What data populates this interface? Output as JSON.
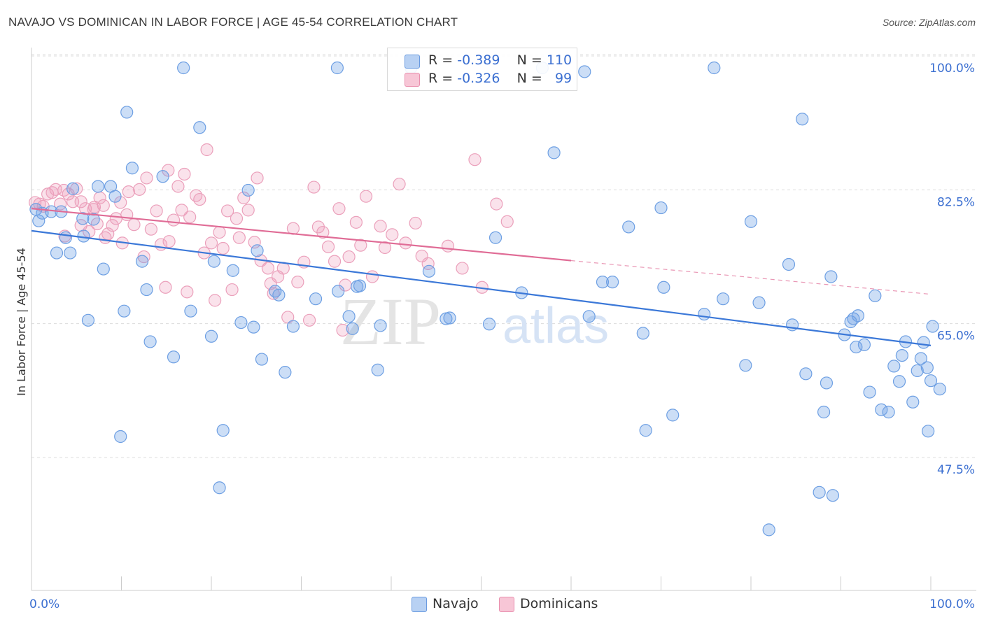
{
  "title": "NAVAJO VS DOMINICAN IN LABOR FORCE | AGE 45-54 CORRELATION CHART",
  "source": "Source: ZipAtlas.com",
  "watermark": {
    "zip": "ZIP",
    "atlas": "atlas"
  },
  "legend": {
    "items": [
      {
        "name": "Navajo",
        "r_label": "R =",
        "r_value": "-0.389",
        "n_label": "N =",
        "n_value": "110",
        "color": "#6a9be0",
        "fill": "#b8d1f3"
      },
      {
        "name": "Dominicans",
        "r_label": "R =",
        "r_value": "-0.326",
        "n_label": "N =",
        "n_value": "99",
        "color": "#e98fae",
        "fill": "#f7c6d6"
      }
    ]
  },
  "chart_data": {
    "type": "scatter",
    "title": "NAVAJO VS DOMINICAN IN LABOR FORCE | AGE 45-54 CORRELATION CHART",
    "xlabel": "",
    "ylabel": "In Labor Force | Age 45-54",
    "xlim": [
      0,
      100
    ],
    "ylim": [
      32,
      102
    ],
    "x_tick_labels": [
      "0.0%",
      "100.0%"
    ],
    "y_ticks": [
      47.5,
      65.0,
      82.5,
      100.0
    ],
    "y_tick_labels": [
      "47.5%",
      "65.0%",
      "82.5%",
      "100.0%"
    ],
    "grid": true,
    "series": [
      {
        "name": "Navajo",
        "color": "#3b78d8",
        "point_fill": "rgba(110,160,230,0.35)",
        "point_stroke": "#6d9fe3",
        "trend": {
          "x0": 0,
          "y0": 78.7,
          "x1": 100,
          "y1": 63.7
        },
        "points": [
          [
            0.5,
            81.5
          ],
          [
            0.8,
            80.0
          ],
          [
            1.2,
            81.0
          ],
          [
            2.2,
            81.2
          ],
          [
            2.8,
            75.8
          ],
          [
            3.3,
            81.2
          ],
          [
            3.8,
            77.8
          ],
          [
            4.3,
            75.8
          ],
          [
            4.6,
            84.2
          ],
          [
            5.7,
            80.3
          ],
          [
            5.8,
            78.0
          ],
          [
            6.3,
            67.0
          ],
          [
            6.9,
            80.2
          ],
          [
            7.4,
            84.5
          ],
          [
            8.0,
            73.7
          ],
          [
            8.8,
            84.5
          ],
          [
            9.3,
            83.2
          ],
          [
            9.9,
            51.8
          ],
          [
            10.3,
            68.2
          ],
          [
            10.6,
            94.2
          ],
          [
            11.2,
            86.9
          ],
          [
            12.3,
            74.7
          ],
          [
            12.8,
            71.0
          ],
          [
            13.2,
            64.2
          ],
          [
            14.6,
            85.8
          ],
          [
            15.8,
            62.2
          ],
          [
            16.9,
            100.0
          ],
          [
            17.7,
            68.2
          ],
          [
            18.7,
            92.2
          ],
          [
            20.0,
            64.9
          ],
          [
            20.3,
            74.7
          ],
          [
            20.9,
            45.1
          ],
          [
            21.3,
            52.6
          ],
          [
            22.4,
            73.5
          ],
          [
            23.3,
            66.7
          ],
          [
            24.1,
            84.0
          ],
          [
            24.7,
            66.1
          ],
          [
            25.1,
            76.1
          ],
          [
            25.6,
            61.9
          ],
          [
            27.1,
            70.8
          ],
          [
            27.5,
            70.3
          ],
          [
            28.2,
            60.2
          ],
          [
            29.1,
            66.2
          ],
          [
            31.6,
            69.8
          ],
          [
            34.0,
            100.0
          ],
          [
            34.1,
            70.8
          ],
          [
            35.3,
            67.5
          ],
          [
            35.7,
            65.9
          ],
          [
            36.2,
            71.4
          ],
          [
            36.5,
            71.5
          ],
          [
            38.5,
            60.5
          ],
          [
            38.8,
            66.3
          ],
          [
            42.2,
            100.0
          ],
          [
            44.2,
            73.4
          ],
          [
            46.1,
            67.2
          ],
          [
            46.5,
            67.3
          ],
          [
            50.9,
            66.5
          ],
          [
            51.6,
            77.8
          ],
          [
            54.5,
            70.6
          ],
          [
            56.8,
            100.0
          ],
          [
            58.1,
            88.9
          ],
          [
            61.5,
            99.5
          ],
          [
            62.0,
            67.5
          ],
          [
            63.5,
            72.0
          ],
          [
            64.6,
            72.0
          ],
          [
            66.4,
            79.2
          ],
          [
            68.0,
            65.3
          ],
          [
            68.3,
            52.6
          ],
          [
            70.0,
            81.7
          ],
          [
            70.3,
            71.3
          ],
          [
            71.3,
            54.6
          ],
          [
            74.8,
            67.8
          ],
          [
            75.9,
            100.0
          ],
          [
            76.9,
            69.8
          ],
          [
            79.4,
            61.1
          ],
          [
            80.0,
            79.9
          ],
          [
            80.9,
            69.3
          ],
          [
            82.0,
            39.6
          ],
          [
            84.2,
            74.3
          ],
          [
            84.6,
            66.4
          ],
          [
            85.7,
            93.3
          ],
          [
            86.1,
            60.0
          ],
          [
            87.6,
            44.5
          ],
          [
            88.1,
            55.0
          ],
          [
            88.4,
            58.8
          ],
          [
            88.9,
            72.7
          ],
          [
            90.4,
            65.1
          ],
          [
            91.1,
            66.8
          ],
          [
            91.4,
            67.2
          ],
          [
            91.9,
            67.6
          ],
          [
            92.6,
            63.8
          ],
          [
            93.2,
            57.6
          ],
          [
            93.8,
            70.2
          ],
          [
            94.5,
            55.3
          ],
          [
            95.3,
            55.0
          ],
          [
            96.5,
            59.0
          ],
          [
            96.8,
            62.4
          ],
          [
            97.2,
            64.2
          ],
          [
            98.0,
            56.3
          ],
          [
            98.5,
            60.4
          ],
          [
            99.2,
            64.1
          ],
          [
            99.6,
            60.8
          ],
          [
            100.0,
            59.1
          ],
          [
            99.7,
            52.5
          ],
          [
            100.2,
            66.2
          ],
          [
            89.1,
            44.1
          ],
          [
            101.0,
            58.0
          ],
          [
            91.7,
            63.5
          ],
          [
            95.9,
            61.0
          ],
          [
            98.9,
            62.0
          ]
        ]
      },
      {
        "name": "Dominicans",
        "color": "#e06c96",
        "point_fill": "rgba(240,160,190,0.30)",
        "point_stroke": "#eba0bb",
        "trend": {
          "x0": 0,
          "y0": 81.6,
          "x1": 60,
          "y1": 74.8
        },
        "trend_dashed": {
          "x0": 60,
          "y0": 74.8,
          "x1": 100,
          "y1": 70.4
        },
        "points": [
          [
            0.4,
            82.4
          ],
          [
            0.9,
            82.2
          ],
          [
            1.3,
            81.9
          ],
          [
            1.8,
            83.5
          ],
          [
            2.3,
            83.7
          ],
          [
            2.7,
            84.1
          ],
          [
            3.2,
            82.2
          ],
          [
            3.6,
            84.0
          ],
          [
            4.1,
            83.5
          ],
          [
            4.6,
            82.5
          ],
          [
            5.0,
            84.2
          ],
          [
            5.5,
            82.5
          ],
          [
            6.0,
            81.6
          ],
          [
            6.4,
            78.6
          ],
          [
            6.9,
            81.5
          ],
          [
            7.3,
            79.6
          ],
          [
            7.6,
            83.0
          ],
          [
            8.0,
            82.0
          ],
          [
            8.2,
            77.8
          ],
          [
            8.5,
            78.3
          ],
          [
            9.0,
            79.4
          ],
          [
            9.4,
            80.3
          ],
          [
            9.9,
            82.4
          ],
          [
            10.1,
            77.1
          ],
          [
            10.8,
            83.8
          ],
          [
            11.4,
            79.5
          ],
          [
            12.0,
            84.1
          ],
          [
            12.5,
            75.3
          ],
          [
            12.8,
            85.6
          ],
          [
            13.3,
            78.9
          ],
          [
            13.9,
            81.3
          ],
          [
            14.4,
            76.9
          ],
          [
            14.9,
            71.3
          ],
          [
            15.3,
            77.3
          ],
          [
            15.8,
            80.1
          ],
          [
            16.3,
            84.5
          ],
          [
            16.7,
            81.4
          ],
          [
            17.3,
            70.7
          ],
          [
            17.6,
            80.5
          ],
          [
            18.3,
            83.3
          ],
          [
            18.7,
            82.8
          ],
          [
            19.2,
            75.8
          ],
          [
            19.5,
            89.3
          ],
          [
            20.0,
            77.1
          ],
          [
            20.4,
            69.6
          ],
          [
            20.9,
            78.5
          ],
          [
            21.3,
            76.4
          ],
          [
            21.8,
            81.3
          ],
          [
            22.3,
            71.0
          ],
          [
            22.8,
            80.3
          ],
          [
            23.1,
            77.8
          ],
          [
            23.6,
            83.0
          ],
          [
            24.8,
            77.2
          ],
          [
            25.1,
            85.6
          ],
          [
            25.5,
            74.8
          ],
          [
            26.3,
            73.8
          ],
          [
            26.9,
            70.5
          ],
          [
            27.4,
            72.7
          ],
          [
            28.0,
            73.8
          ],
          [
            28.5,
            67.4
          ],
          [
            29.1,
            79.0
          ],
          [
            29.6,
            72.0
          ],
          [
            30.3,
            74.6
          ],
          [
            30.9,
            67.0
          ],
          [
            31.4,
            84.4
          ],
          [
            31.9,
            79.2
          ],
          [
            32.4,
            78.5
          ],
          [
            33.0,
            76.6
          ],
          [
            33.7,
            74.7
          ],
          [
            34.2,
            81.6
          ],
          [
            34.9,
            71.6
          ],
          [
            35.3,
            75.3
          ],
          [
            36.1,
            79.8
          ],
          [
            36.6,
            76.8
          ],
          [
            37.2,
            83.2
          ],
          [
            37.9,
            72.7
          ],
          [
            38.8,
            79.3
          ],
          [
            39.3,
            76.5
          ],
          [
            40.1,
            78.2
          ],
          [
            40.9,
            84.8
          ],
          [
            41.6,
            77.1
          ],
          [
            42.7,
            79.7
          ],
          [
            43.4,
            75.4
          ],
          [
            44.1,
            74.4
          ],
          [
            46.3,
            76.7
          ],
          [
            47.9,
            73.8
          ],
          [
            49.3,
            88.0
          ],
          [
            50.1,
            71.3
          ],
          [
            51.7,
            82.2
          ],
          [
            52.9,
            79.9
          ],
          [
            3.7,
            78.0
          ],
          [
            24.1,
            81.4
          ],
          [
            26.6,
            71.8
          ],
          [
            34.6,
            65.7
          ],
          [
            17.0,
            86.1
          ],
          [
            7.0,
            81.8
          ],
          [
            10.6,
            80.8
          ],
          [
            15.2,
            86.6
          ],
          [
            5.5,
            79.4
          ]
        ]
      }
    ]
  }
}
